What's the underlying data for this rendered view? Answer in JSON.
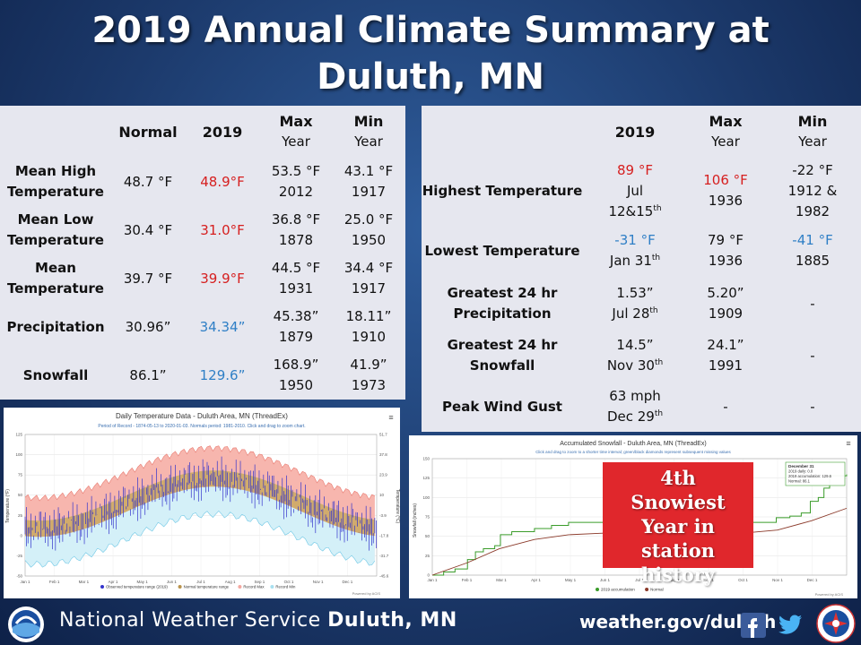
{
  "title_line1": "2019 Annual Climate Summary at",
  "title_line2": "Duluth, MN",
  "left_table": {
    "headers": {
      "normal": "Normal",
      "year": "2019",
      "max_top": "Max",
      "max_bottom": "Year",
      "min_top": "Min",
      "min_bottom": "Year"
    },
    "rows": [
      {
        "label1": "Mean High",
        "label2": "Temperature",
        "normal": "48.7 °F",
        "value": "48.9°F",
        "max_val": "53.5 °F",
        "max_year": "2012",
        "min_val": "43.1 °F",
        "min_year": "1917"
      },
      {
        "label1": "Mean Low",
        "label2": "Temperature",
        "normal": "30.4 °F",
        "value": "31.0°F",
        "max_val": "36.8 °F",
        "max_year": "1878",
        "min_val": "25.0 °F",
        "min_year": "1950"
      },
      {
        "label1": "Mean",
        "label2": "Temperature",
        "normal": "39.7 °F",
        "value": "39.9°F",
        "max_val": "44.5 °F",
        "max_year": "1931",
        "min_val": "34.4 °F",
        "min_year": "1917"
      },
      {
        "label1": "Precipitation",
        "label2": "",
        "normal": "30.96”",
        "value": "34.34”",
        "max_val": "45.38”",
        "max_year": "1879",
        "min_val": "18.11”",
        "min_year": "1910"
      },
      {
        "label1": "Snowfall",
        "label2": "",
        "normal": "86.1”",
        "value": "129.6”",
        "max_val": "168.9”",
        "max_year": "1950",
        "min_val": "41.9”",
        "min_year": "1973"
      }
    ]
  },
  "right_table": {
    "headers": {
      "year": "2019",
      "max_top": "Max",
      "max_bottom": "Year",
      "min_top": "Min",
      "min_bottom": "Year"
    },
    "rows": [
      {
        "label1": "Highest Temperature",
        "label2": "",
        "v1": "89 °F",
        "v2": "Jul",
        "v3": "12&15",
        "v3sup": "th",
        "max1": "106 °F",
        "max2": "1936",
        "min1": "-22 °F",
        "min2": "1912 &",
        "min3": "1982"
      },
      {
        "label1": "Lowest Temperature",
        "label2": "",
        "v1": "-31 °F",
        "v2": "Jan 31",
        "v2sup": "th",
        "max1": "79 °F",
        "max2": "1936",
        "min1": "-41 °F",
        "min2": "1885"
      },
      {
        "label1": "Greatest 24 hr",
        "label2": "Precipitation",
        "v1": "1.53”",
        "v2": "Jul 28",
        "v2sup": "th",
        "max1": "5.20”",
        "max2": "1909",
        "min1": "-"
      },
      {
        "label1": "Greatest 24 hr",
        "label2": "Snowfall",
        "v1": "14.5”",
        "v2": "Nov 30",
        "v2sup": "th",
        "max1": "24.1”",
        "max2": "1991",
        "min1": "-"
      },
      {
        "label1": "Peak Wind Gust",
        "label2": "",
        "v1": "63 mph",
        "v2": "Dec 29",
        "v2sup": "th",
        "max1": "-",
        "min1": "-"
      }
    ]
  },
  "temp_chart": {
    "title": "Daily Temperature Data - Duluth Area, MN (ThreadEx)",
    "subtitle": "Period of Record - 1874-05-13 to 2020-01-03. Normals period: 1981-2010. Click and drag to zoom chart.",
    "y_left_ticks": [
      "125",
      "100",
      "75",
      "50",
      "25",
      "0",
      "-25",
      "-50"
    ],
    "y_right_ticks": [
      "51.7",
      "37.8",
      "23.9",
      "10",
      "-3.9",
      "-17.8",
      "-31.7",
      "-45.6"
    ],
    "x_ticks": [
      "Jan 1",
      "Feb 1",
      "Mar 1",
      "Apr 1",
      "May 1",
      "Jun 1",
      "Jul 1",
      "Aug 1",
      "Sep 1",
      "Oct 1",
      "Nov 1",
      "Dec 1"
    ],
    "y_left_label": "Temperature (°F)",
    "y_right_label": "Temperature (°C)",
    "legend": [
      "Observed temperature range (2019)",
      "Normal temperature range",
      "Record Max",
      "Record Min"
    ],
    "credit": "Powered by ACIS",
    "menu_glyph": "≡",
    "colors": {
      "observed": "#3333cc",
      "normal": "#b8924a",
      "record_max": "#f4a7a0",
      "record_min": "#a8e0f0"
    }
  },
  "snow_chart": {
    "title": "Accumulated Snowfall - Duluth Area, MN (ThreadEx)",
    "subtitle": "Click and drag to zoom to a shorter time interval; green/black diamonds represent subsequent missing values",
    "y_ticks": [
      "150",
      "125",
      "100",
      "75",
      "50",
      "25",
      "0"
    ],
    "y_label": "Snowfall (inches)",
    "x_ticks": [
      "Jan 1",
      "Feb 1",
      "Mar 1",
      "Apr 1",
      "May 1",
      "Jun 1",
      "Jul 1",
      "Aug 1",
      "Sep 1",
      "Oct 1",
      "Nov 1",
      "Dec 1"
    ],
    "legend": [
      "2019 accumulation",
      "Normal"
    ],
    "tooltip": [
      "December 31",
      "2019 daily: 0.0",
      "2019 accumulation: 129.6",
      "Normal: 86.1"
    ],
    "credit": "Powered by ACIS",
    "menu_glyph": "≡",
    "colors": {
      "accum": "#3a9c2a",
      "normal": "#8b3a2a"
    }
  },
  "overlay": {
    "line1": "4th",
    "line2": "Snowiest",
    "line3": "Year in station",
    "line4": "history"
  },
  "footer": {
    "agency_prefix": "National Weather Service",
    "agency_office": "Duluth, MN",
    "website": "weather.gov/duluth"
  }
}
